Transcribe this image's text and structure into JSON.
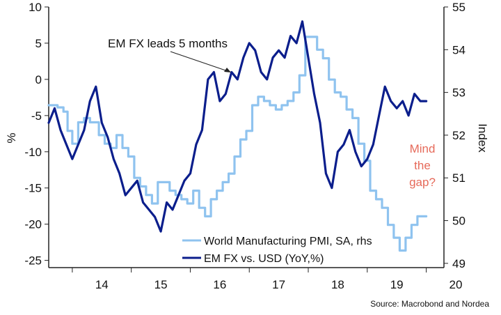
{
  "chart_data": {
    "type": "line",
    "title": "",
    "ylabel_left": "%",
    "ylabel_right": "Index",
    "xlabel": "",
    "x_ticks": [
      "14",
      "15",
      "16",
      "17",
      "18",
      "19",
      "20"
    ],
    "x_range": [
      2013.6,
      2020.3
    ],
    "ylim_left": [
      -26,
      10
    ],
    "yticks_left": [
      -25,
      -20,
      -15,
      -10,
      -5,
      0,
      5,
      10
    ],
    "ylim_right": [
      48.9,
      55.0
    ],
    "yticks_right": [
      49,
      50,
      51,
      52,
      53,
      54,
      55
    ],
    "grid": false,
    "legend_position": "bottom-center",
    "colors": {
      "pmi": "#8fc3ef",
      "emfx": "#0b1e8c",
      "gap_note": "#e66a5a"
    },
    "series": [
      {
        "name": "World Manufacturing PMI, SA, rhs",
        "axis": "right",
        "step": true,
        "x": [
          2013.6,
          2013.75,
          2013.85,
          2013.92,
          2014.0,
          2014.1,
          2014.2,
          2014.3,
          2014.45,
          2014.55,
          2014.65,
          2014.75,
          2014.85,
          2014.95,
          2015.05,
          2015.15,
          2015.25,
          2015.35,
          2015.45,
          2015.55,
          2015.65,
          2015.75,
          2015.85,
          2015.95,
          2016.05,
          2016.15,
          2016.25,
          2016.35,
          2016.45,
          2016.55,
          2016.65,
          2016.75,
          2016.85,
          2016.95,
          2017.05,
          2017.15,
          2017.25,
          2017.35,
          2017.45,
          2017.55,
          2017.65,
          2017.75,
          2017.85,
          2017.95,
          2018.05,
          2018.15,
          2018.25,
          2018.35,
          2018.45,
          2018.55,
          2018.65,
          2018.75,
          2018.85,
          2018.95,
          2019.05,
          2019.15,
          2019.25,
          2019.35,
          2019.45,
          2019.55,
          2019.65,
          2019.75,
          2019.85
        ],
        "values": [
          52.7,
          52.65,
          52.55,
          52.1,
          51.8,
          52.3,
          52.4,
          52.3,
          52.0,
          51.8,
          51.7,
          52.0,
          51.7,
          51.5,
          51.0,
          50.8,
          50.6,
          50.4,
          50.9,
          50.9,
          50.7,
          50.6,
          50.5,
          50.4,
          50.7,
          50.3,
          50.1,
          50.5,
          50.7,
          50.9,
          51.1,
          51.5,
          51.9,
          52.1,
          52.7,
          52.9,
          52.8,
          52.7,
          52.6,
          52.7,
          52.8,
          53.0,
          53.4,
          54.3,
          54.3,
          54.0,
          53.8,
          53.3,
          53.0,
          52.9,
          52.6,
          52.4,
          51.8,
          51.4,
          50.7,
          50.5,
          50.3,
          49.9,
          49.6,
          49.3,
          49.6,
          49.9,
          50.1
        ],
        "x_end": 2020.0
      },
      {
        "name": "EM FX vs. USD (YoY,%)",
        "axis": "left",
        "step": false,
        "x": [
          2013.6,
          2013.7,
          2013.8,
          2013.9,
          2014.0,
          2014.1,
          2014.2,
          2014.3,
          2014.4,
          2014.5,
          2014.6,
          2014.7,
          2014.8,
          2014.9,
          2015.0,
          2015.1,
          2015.2,
          2015.3,
          2015.4,
          2015.5,
          2015.6,
          2015.7,
          2015.8,
          2015.9,
          2016.0,
          2016.1,
          2016.2,
          2016.3,
          2016.4,
          2016.5,
          2016.6,
          2016.7,
          2016.8,
          2016.9,
          2017.0,
          2017.1,
          2017.2,
          2017.3,
          2017.4,
          2017.5,
          2017.6,
          2017.7,
          2017.8,
          2017.9,
          2018.0,
          2018.1,
          2018.2,
          2018.3,
          2018.4,
          2018.5,
          2018.6,
          2018.7,
          2018.8,
          2018.9,
          2019.0,
          2019.1,
          2019.2,
          2019.3,
          2019.4,
          2019.5,
          2019.6,
          2019.7,
          2019.8,
          2019.9,
          2020.0
        ],
        "values": [
          -6,
          -4,
          -7,
          -9,
          -11,
          -9,
          -7,
          -3,
          -1,
          -6,
          -8,
          -11,
          -13,
          -16,
          -15,
          -14,
          -17,
          -18,
          -19,
          -21,
          -17,
          -18,
          -16,
          -14,
          -13,
          -9,
          -7,
          0,
          1,
          -3,
          -2,
          1,
          0,
          3,
          5,
          4,
          1,
          0,
          3,
          4,
          3,
          6,
          5,
          8,
          3,
          -2,
          -6,
          -13,
          -15,
          -10,
          -9,
          -7,
          -10,
          -12,
          -11,
          -9,
          -5,
          -1,
          -3,
          -4,
          -3,
          -5,
          -2,
          -3,
          -3
        ],
        "x_end": 2020.0
      }
    ],
    "annotations": [
      {
        "text": "EM FX leads 5 months",
        "x": 2016.95,
        "y": 2
      },
      {
        "text": "Mind the gap?",
        "x": 2019.75,
        "y": -10
      }
    ],
    "source": "Source: Macrobond and Nordea"
  }
}
